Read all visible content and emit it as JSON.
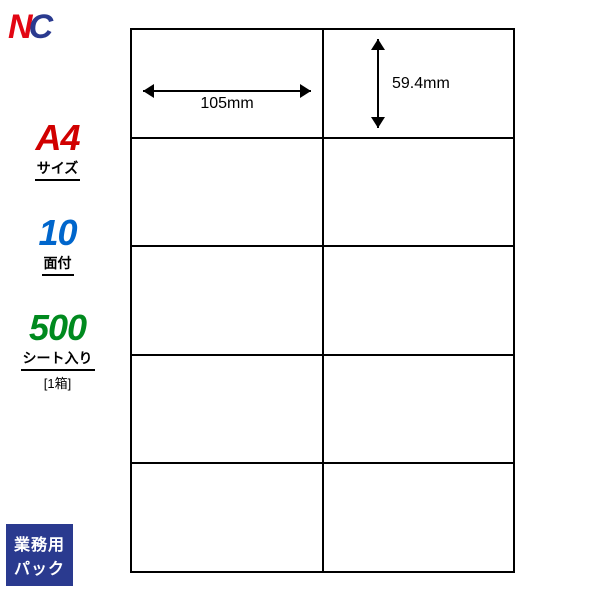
{
  "logo": {
    "letter1": "N",
    "letter2": "C",
    "color1": "#e20613",
    "color2": "#2a3a8f"
  },
  "sheet": {
    "cols": 2,
    "rows": 5,
    "border_color": "#000000",
    "background": "#ffffff",
    "dim_width": {
      "value": "105mm"
    },
    "dim_height": {
      "value": "59.4mm"
    }
  },
  "specs": {
    "size": {
      "big": "A4",
      "sub": "サイズ",
      "color": "#d10000"
    },
    "faces": {
      "big": "10",
      "sub": "面付",
      "color": "#0066cc"
    },
    "sheets": {
      "big": "500",
      "sub": "シート入り",
      "note": "[1箱]",
      "color": "#008a1e"
    }
  },
  "badge": {
    "text": "業務用\nパック",
    "bg": "#2a3a8f",
    "fg": "#ffffff"
  }
}
